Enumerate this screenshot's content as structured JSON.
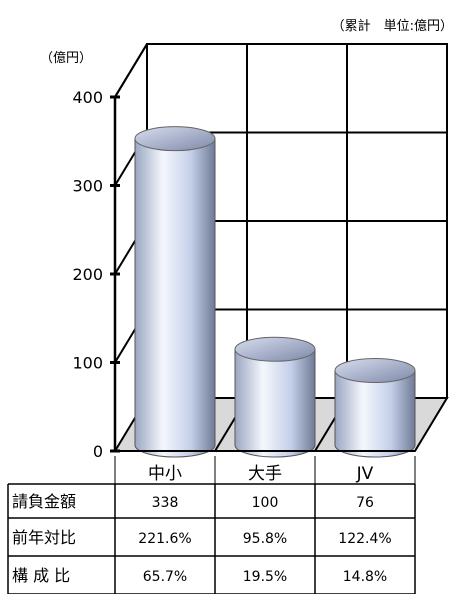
{
  "chart_data": {
    "type": "bar",
    "unit_note": "（累計　単位:億円）",
    "ylabel": "（億円）",
    "ylim": [
      0,
      400
    ],
    "yticks": [
      0,
      100,
      200,
      300,
      400
    ],
    "grid": true,
    "categories": [
      "中小",
      "大手",
      "JV"
    ],
    "values": [
      338,
      100,
      76
    ],
    "bar_color": "#c9d5ee",
    "table": {
      "rows": [
        {
          "label": "請負金額",
          "cells": [
            "338",
            "100",
            "76"
          ]
        },
        {
          "label": "前年対比",
          "cells": [
            "221.6%",
            "95.8%",
            "122.4%"
          ]
        },
        {
          "label": "構 成 比",
          "cells": [
            "65.7%",
            "19.5%",
            "14.8%"
          ]
        }
      ]
    }
  }
}
